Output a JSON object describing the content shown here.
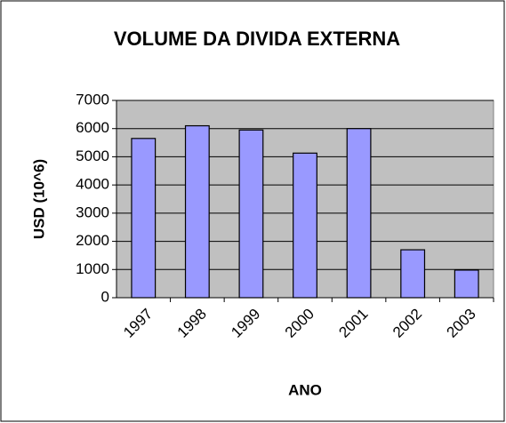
{
  "chart_data": {
    "type": "bar",
    "title": "VOLUME DA DIVIDA EXTERNA",
    "x_label": "ANO",
    "y_label": "USD (10^6)",
    "categories": [
      "1997",
      "1998",
      "1999",
      "2000",
      "2001",
      "2002",
      "2003"
    ],
    "values": [
      5650,
      6100,
      5950,
      5130,
      6000,
      1700,
      980
    ],
    "color": "#9999ff",
    "ylim": [
      0,
      7000
    ],
    "yticks": [
      0,
      1000,
      2000,
      3000,
      4000,
      5000,
      6000,
      7000
    ],
    "grid": true
  }
}
